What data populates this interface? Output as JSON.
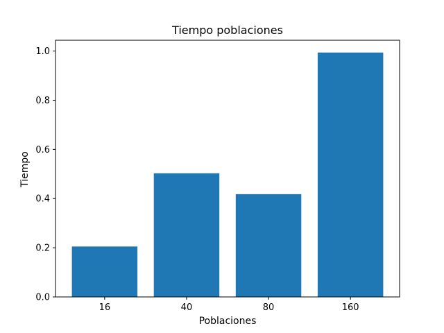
{
  "chart_data": {
    "type": "bar",
    "title": "Tiempo poblaciones",
    "xlabel": "Poblaciones",
    "ylabel": "Tiempo",
    "categories": [
      "16",
      "40",
      "80",
      "160"
    ],
    "values": [
      0.205,
      0.503,
      0.418,
      0.994
    ],
    "ylim": [
      0,
      1.044
    ],
    "yticks": [
      0.0,
      0.2,
      0.4,
      0.6,
      0.8,
      1.0
    ],
    "ytick_labels": [
      "0.0",
      "0.2",
      "0.4",
      "0.6",
      "0.8",
      "1.0"
    ],
    "bar_color": "#1f77b4",
    "grid": false,
    "legend": "none"
  }
}
